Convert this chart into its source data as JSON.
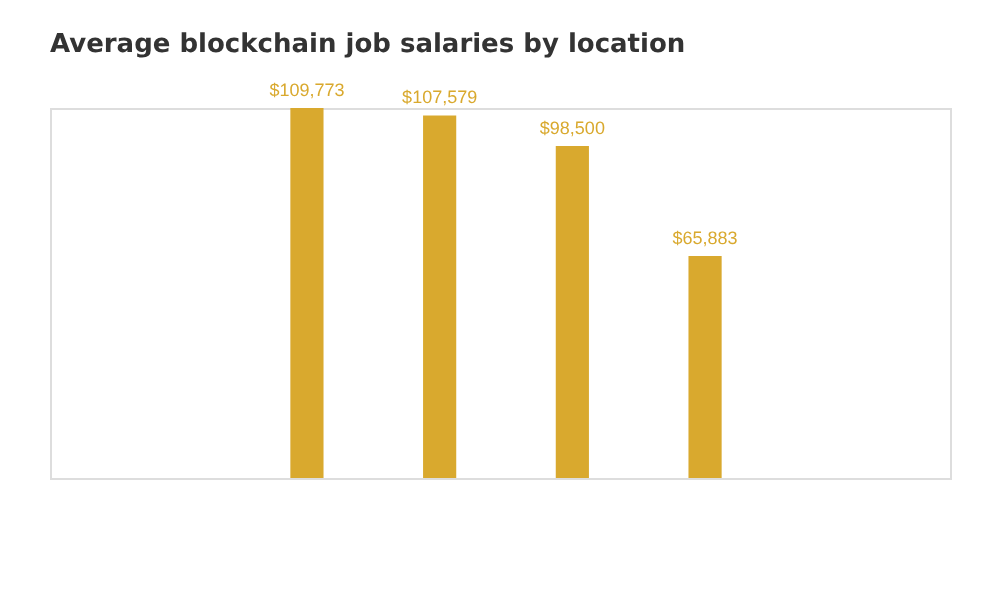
{
  "chart_data": {
    "type": "bar",
    "title": "Average blockchain job salaries by location",
    "categories": [
      null,
      null,
      null,
      null
    ],
    "values": [
      109773,
      107579,
      98500,
      65883
    ],
    "value_labels": [
      "$109,773",
      "$107,579",
      "$98,500",
      "$65,883"
    ],
    "color": "#d9a92e"
  }
}
